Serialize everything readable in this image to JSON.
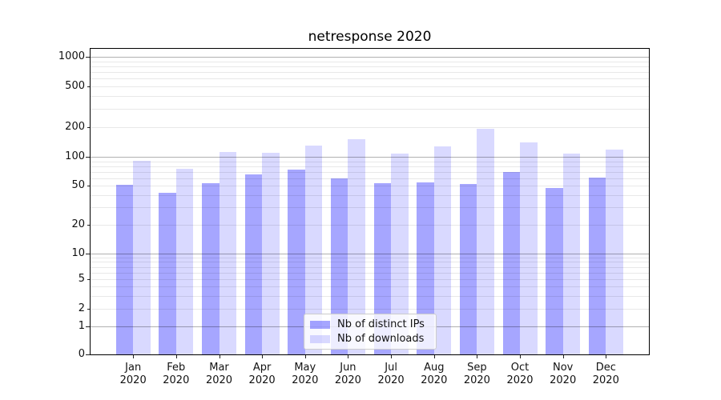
{
  "chart_data": {
    "type": "bar",
    "title": "netresponse 2020",
    "categories": [
      "Jan",
      "Feb",
      "Mar",
      "Apr",
      "May",
      "Jun",
      "Jul",
      "Aug",
      "Sep",
      "Oct",
      "Nov",
      "Dec"
    ],
    "category_year": "2020",
    "series": [
      {
        "name": "Nb of distinct IPs",
        "color": "#0000ff",
        "alpha": 0.35,
        "values": [
          51,
          42,
          53,
          65,
          74,
          59,
          53,
          54,
          52,
          69,
          47,
          61
        ]
      },
      {
        "name": "Nb of downloads",
        "color": "#0000ff",
        "alpha": 0.15,
        "values": [
          91,
          75,
          112,
          110,
          130,
          151,
          108,
          128,
          193,
          140,
          108,
          118
        ]
      }
    ],
    "yscale": "symlog",
    "ytick_labels": [
      "0",
      "1",
      "2",
      "5",
      "10",
      "20",
      "50",
      "100",
      "200",
      "500",
      "1000"
    ],
    "ylim": [
      0,
      1300
    ],
    "grid": "both",
    "grid_major_color": "#b0b0b0",
    "grid_minor_color": "#e8e8e8",
    "legend_position": "lower center"
  }
}
